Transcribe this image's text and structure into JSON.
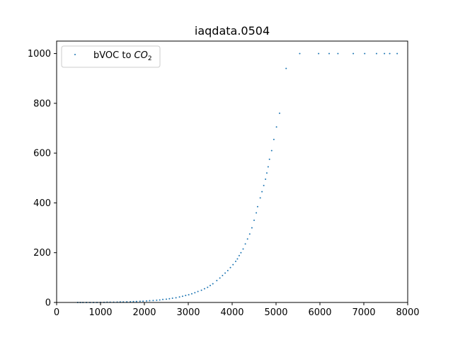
{
  "chart_data": {
    "type": "scatter",
    "title": "iaqdata.0504",
    "xlabel": "",
    "ylabel": "",
    "xlim": [
      0,
      8000
    ],
    "ylim": [
      0,
      1050
    ],
    "x_ticks": [
      0,
      1000,
      2000,
      3000,
      4000,
      5000,
      6000,
      7000,
      8000
    ],
    "y_ticks": [
      0,
      200,
      400,
      600,
      800,
      1000
    ],
    "grid": false,
    "legend": {
      "placement": "top-left",
      "entries": [
        "bVOC to CO2"
      ]
    },
    "legend_label": {
      "main": "bVOC to ",
      "italic": "CO",
      "subscript": "2"
    },
    "series": [
      {
        "name": "bVOC to CO2",
        "color": "#1f77b4",
        "points": [
          [
            480,
            0
          ],
          [
            540,
            0
          ],
          [
            600,
            0
          ],
          [
            680,
            0
          ],
          [
            760,
            0
          ],
          [
            840,
            0
          ],
          [
            920,
            0
          ],
          [
            1000,
            0.5
          ],
          [
            1080,
            0.5
          ],
          [
            1150,
            1
          ],
          [
            1220,
            1
          ],
          [
            1300,
            1
          ],
          [
            1380,
            1.5
          ],
          [
            1450,
            2
          ],
          [
            1520,
            2
          ],
          [
            1600,
            2.5
          ],
          [
            1680,
            3
          ],
          [
            1750,
            3.5
          ],
          [
            1820,
            4
          ],
          [
            1900,
            4.5
          ],
          [
            1970,
            5
          ],
          [
            2050,
            6
          ],
          [
            2120,
            7
          ],
          [
            2200,
            8
          ],
          [
            2280,
            9
          ],
          [
            2350,
            10
          ],
          [
            2420,
            12
          ],
          [
            2500,
            13
          ],
          [
            2570,
            15
          ],
          [
            2640,
            17
          ],
          [
            2720,
            19
          ],
          [
            2800,
            22
          ],
          [
            2870,
            25
          ],
          [
            2940,
            28
          ],
          [
            3010,
            31
          ],
          [
            3080,
            35
          ],
          [
            3150,
            39
          ],
          [
            3220,
            44
          ],
          [
            3300,
            49
          ],
          [
            3370,
            55
          ],
          [
            3440,
            61
          ],
          [
            3500,
            68
          ],
          [
            3560,
            75
          ],
          [
            3650,
            88
          ],
          [
            3720,
            98
          ],
          [
            3780,
            108
          ],
          [
            3840,
            118
          ],
          [
            3900,
            128
          ],
          [
            3960,
            140
          ],
          [
            4020,
            152
          ],
          [
            4080,
            165
          ],
          [
            4120,
            175
          ],
          [
            4160,
            188
          ],
          [
            4200,
            200
          ],
          [
            4250,
            215
          ],
          [
            4300,
            235
          ],
          [
            4350,
            255
          ],
          [
            4400,
            275
          ],
          [
            4450,
            300
          ],
          [
            4500,
            330
          ],
          [
            4550,
            360
          ],
          [
            4580,
            385
          ],
          [
            4640,
            420
          ],
          [
            4680,
            445
          ],
          [
            4720,
            470
          ],
          [
            4760,
            495
          ],
          [
            4790,
            520
          ],
          [
            4820,
            545
          ],
          [
            4850,
            575
          ],
          [
            4900,
            610
          ],
          [
            4950,
            655
          ],
          [
            5010,
            705
          ],
          [
            5080,
            760
          ],
          [
            5230,
            940
          ],
          [
            5540,
            1000
          ],
          [
            5970,
            1000
          ],
          [
            6210,
            1000
          ],
          [
            6410,
            1000
          ],
          [
            6760,
            1000
          ],
          [
            7020,
            1000
          ],
          [
            7290,
            1000
          ],
          [
            7470,
            1000
          ],
          [
            7590,
            1000
          ],
          [
            7760,
            1000
          ]
        ]
      }
    ]
  }
}
